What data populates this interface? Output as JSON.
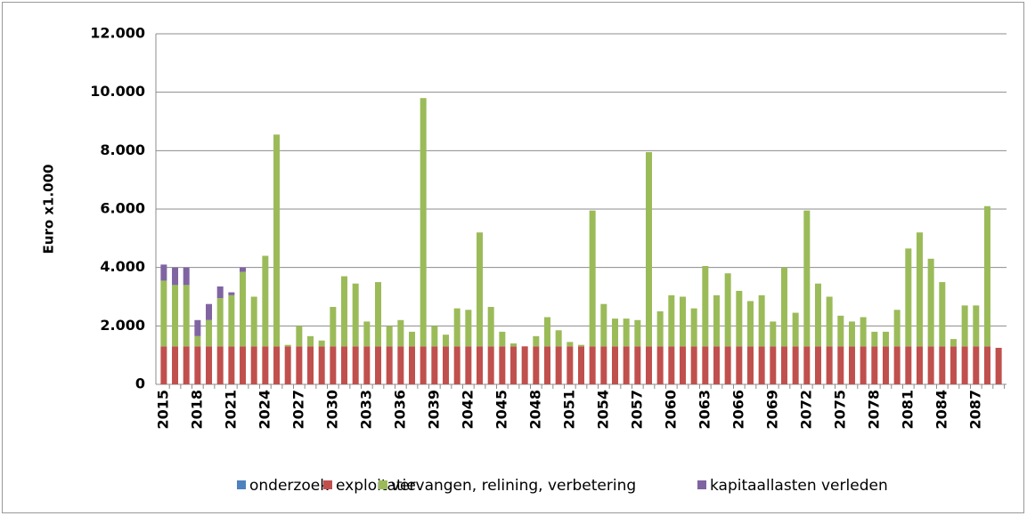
{
  "chart_data": {
    "type": "bar",
    "stacked": true,
    "ylabel": "Euro x1.000",
    "categories": [
      "2015",
      null,
      null,
      "2018",
      null,
      null,
      "2021",
      null,
      null,
      "2024",
      null,
      null,
      "2027",
      null,
      null,
      "2030",
      null,
      null,
      "2033",
      null,
      null,
      "2036",
      null,
      null,
      "2039",
      null,
      null,
      "2042",
      null,
      null,
      "2045",
      null,
      null,
      "2048",
      null,
      null,
      "2051",
      null,
      null,
      "2054",
      null,
      null,
      "2057",
      null,
      null,
      "2060",
      null,
      null,
      "2063",
      null,
      null,
      "2066",
      null,
      null,
      "2069",
      null,
      null,
      "2072",
      null,
      null,
      "2075",
      null,
      null,
      "2078",
      null,
      null,
      "2081",
      null,
      null,
      "2084",
      null,
      null,
      "2087",
      null,
      null
    ],
    "series": [
      {
        "name": "onderzoek",
        "color": "#4f81bd",
        "values": [
          0,
          0,
          0,
          0,
          0,
          0,
          0,
          0,
          0,
          0,
          0,
          0,
          0,
          0,
          0,
          0,
          0,
          0,
          0,
          0,
          0,
          0,
          0,
          0,
          0,
          0,
          0,
          0,
          0,
          0,
          0,
          0,
          0,
          0,
          0,
          0,
          0,
          0,
          0,
          0,
          0,
          0,
          0,
          0,
          0,
          0,
          0,
          0,
          0,
          0,
          0,
          0,
          0,
          0,
          0,
          0,
          0,
          0,
          0,
          0,
          0,
          0,
          0,
          0,
          0,
          0,
          0,
          0,
          0,
          0,
          0,
          0,
          0,
          0,
          0
        ]
      },
      {
        "name": "exploitatie",
        "color": "#c0504d",
        "values": [
          1300,
          1300,
          1300,
          1300,
          1300,
          1300,
          1300,
          1300,
          1300,
          1300,
          1300,
          1300,
          1300,
          1300,
          1300,
          1300,
          1300,
          1300,
          1300,
          1300,
          1300,
          1300,
          1300,
          1300,
          1300,
          1300,
          1300,
          1300,
          1300,
          1300,
          1300,
          1300,
          1300,
          1300,
          1300,
          1300,
          1300,
          1300,
          1300,
          1300,
          1300,
          1300,
          1300,
          1300,
          1300,
          1300,
          1300,
          1300,
          1300,
          1300,
          1300,
          1300,
          1300,
          1300,
          1300,
          1300,
          1300,
          1300,
          1300,
          1300,
          1300,
          1300,
          1300,
          1300,
          1300,
          1300,
          1300,
          1300,
          1300,
          1300,
          1300,
          1300,
          1300,
          1300,
          1250
        ]
      },
      {
        "name": "vervangen, relining, verbetering",
        "color": "#9bbb59",
        "values": [
          2250,
          2100,
          2100,
          350,
          900,
          1650,
          1750,
          2550,
          1700,
          3100,
          7250,
          50,
          700,
          350,
          200,
          1350,
          2400,
          2150,
          850,
          2200,
          700,
          900,
          500,
          8500,
          700,
          400,
          1300,
          1250,
          3900,
          1350,
          500,
          100,
          0,
          350,
          1000,
          550,
          150,
          50,
          4650,
          1450,
          950,
          950,
          900,
          6650,
          1200,
          1750,
          1700,
          1300,
          2750,
          1750,
          2500,
          1900,
          1550,
          1750,
          850,
          2700,
          1150,
          4650,
          2150,
          1700,
          1050,
          850,
          1000,
          500,
          500,
          1250,
          3350,
          3900,
          3000,
          2200,
          250,
          1400,
          1400,
          4800,
          0
        ]
      },
      {
        "name": "kapitaallasten verleden",
        "color": "#8064a2",
        "values": [
          550,
          600,
          600,
          550,
          550,
          400,
          100,
          150,
          0,
          0,
          0,
          0,
          0,
          0,
          0,
          0,
          0,
          0,
          0,
          0,
          0,
          0,
          0,
          0,
          0,
          0,
          0,
          0,
          0,
          0,
          0,
          0,
          0,
          0,
          0,
          0,
          0,
          0,
          0,
          0,
          0,
          0,
          0,
          0,
          0,
          0,
          0,
          0,
          0,
          0,
          0,
          0,
          0,
          0,
          0,
          0,
          0,
          0,
          0,
          0,
          0,
          0,
          0,
          0,
          0,
          0,
          0,
          0,
          0,
          0,
          0,
          0,
          0,
          0,
          0
        ]
      }
    ],
    "ylim": [
      0,
      12000
    ],
    "yticks": [
      0,
      {
        "value": 2000,
        "label": "2.000"
      },
      {
        "value": 4000,
        "label": "4.000"
      },
      {
        "value": 6000,
        "label": "6.000"
      },
      {
        "value": 8000,
        "label": "8.000"
      },
      {
        "value": 10000,
        "label": "10.000"
      },
      {
        "value": 12000,
        "label": "12.000"
      }
    ],
    "grid": true,
    "legend": "bottom"
  }
}
